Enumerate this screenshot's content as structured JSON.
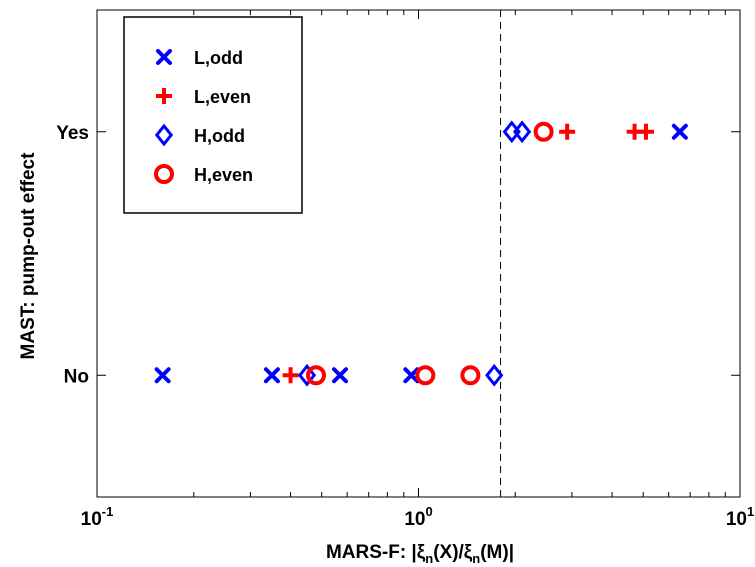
{
  "chart_data": {
    "type": "scatter",
    "title": "",
    "xlabel_prefix": "MARS-F: |",
    "xlabel_xi1": "ξ",
    "xlabel_n1": "n",
    "xlabel_mid": "(X)/",
    "xlabel_xi2": "ξ",
    "xlabel_n2": "n",
    "xlabel_suffix": "(M)|",
    "ylabel": "MAST: pump-out effect",
    "x_scale": "log",
    "xlim": [
      0.1,
      10
    ],
    "x_ticks": [
      {
        "value": 0.1,
        "base": "10",
        "exp": "-1"
      },
      {
        "value": 1,
        "base": "10",
        "exp": "0"
      },
      {
        "value": 10,
        "base": "10",
        "exp": "1"
      }
    ],
    "y_categories": [
      "No",
      "Yes"
    ],
    "ylim": [
      -0.5,
      1.5
    ],
    "threshold_x": 1.8,
    "threshold_style": "dashed",
    "legend_position": "top-left",
    "series": [
      {
        "name": "L,odd",
        "marker": "x",
        "color": "#0000ff",
        "points": [
          [
            0.16,
            0
          ],
          [
            0.35,
            0
          ],
          [
            0.57,
            0
          ],
          [
            0.95,
            0
          ],
          [
            6.5,
            1
          ]
        ]
      },
      {
        "name": "L,even",
        "marker": "+",
        "color": "#ff0000",
        "points": [
          [
            0.4,
            0
          ],
          [
            2.9,
            1
          ],
          [
            4.7,
            1
          ],
          [
            5.1,
            1
          ]
        ]
      },
      {
        "name": "H,odd",
        "marker": "diamond",
        "color": "#0000ff",
        "points": [
          [
            0.45,
            0
          ],
          [
            1.72,
            0
          ],
          [
            1.95,
            1
          ],
          [
            2.1,
            1
          ]
        ]
      },
      {
        "name": "H,even",
        "marker": "circle",
        "color": "#ff0000",
        "points": [
          [
            0.48,
            0
          ],
          [
            1.05,
            0
          ],
          [
            1.45,
            0
          ],
          [
            2.45,
            1
          ]
        ]
      }
    ]
  }
}
